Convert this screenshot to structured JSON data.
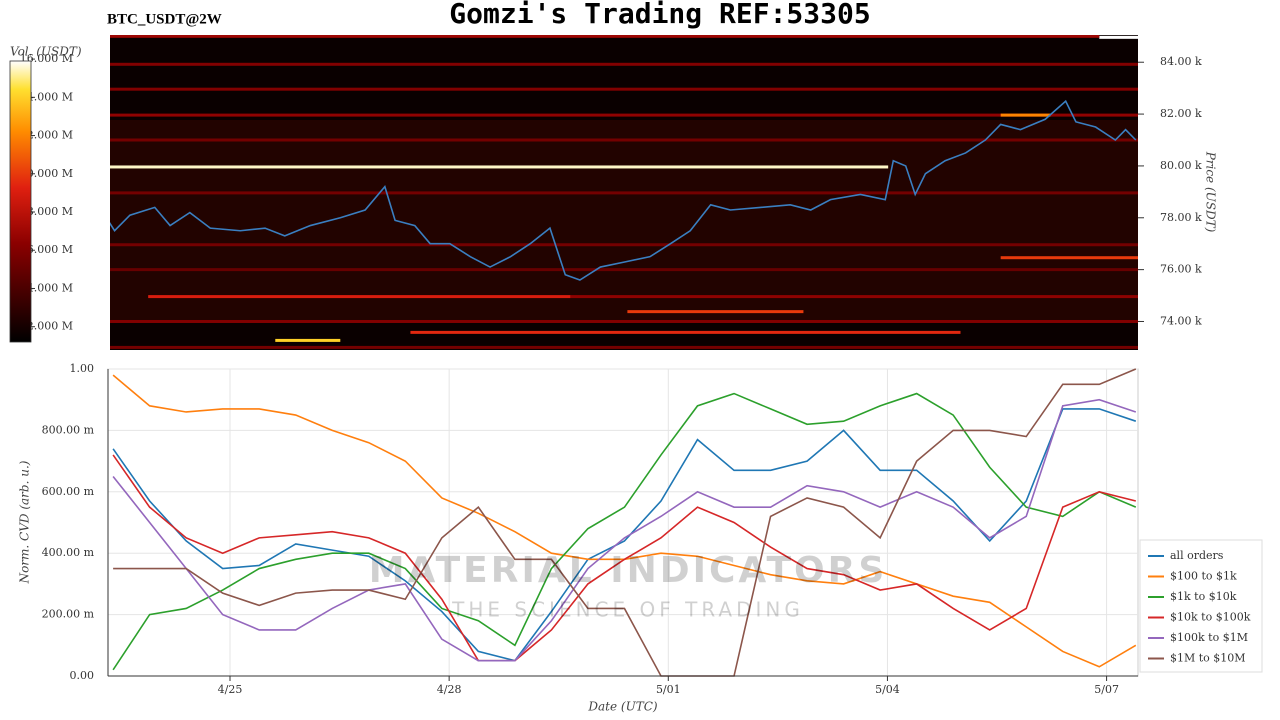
{
  "chart_data": [
    {
      "type": "heatmap",
      "title": "Gomzi's Trading REF:53305",
      "subtitle": "BTC_USDT@2W",
      "colorbar_label": "Vol. (USDT)",
      "y_label": "Price (USDT)",
      "xlim": [
        23.33,
        37.43
      ],
      "ylim": [
        72900,
        85050
      ],
      "yticks": [
        {
          "value": 74000,
          "label": "74.00 k"
        },
        {
          "value": 76000,
          "label": "76.00 k"
        },
        {
          "value": 78000,
          "label": "78.00 k"
        },
        {
          "value": 80000,
          "label": "80.00 k"
        },
        {
          "value": 82000,
          "label": "82.00 k"
        },
        {
          "value": 84000,
          "label": "84.00 k"
        }
      ],
      "clim": [
        1200000,
        15900000
      ],
      "cticks": [
        {
          "value": 2000000,
          "label": "2.000 M"
        },
        {
          "value": 4000000,
          "label": "4.000 M"
        },
        {
          "value": 6000000,
          "label": "6.000 M"
        },
        {
          "value": 8000000,
          "label": "8.000 M"
        },
        {
          "value": 10000000,
          "label": "10.000 M"
        },
        {
          "value": 12000000,
          "label": "12.000 M"
        },
        {
          "value": 14000000,
          "label": "14.000 M"
        },
        {
          "value": 16000000,
          "label": "16.000 M"
        }
      ],
      "bands": [
        {
          "price": 84960,
          "start": 36.9,
          "end": 37.43,
          "volume": 15900000
        },
        {
          "price": 85000,
          "start": 23.33,
          "end": 36.9,
          "volume": 7000000
        },
        {
          "price": 83920,
          "start": 23.33,
          "end": 37.43,
          "volume": 6000000
        },
        {
          "price": 82960,
          "start": 23.33,
          "end": 37.43,
          "volume": 6000000
        },
        {
          "price": 81960,
          "start": 23.33,
          "end": 37.43,
          "volume": 6500000
        },
        {
          "price": 81960,
          "start": 35.55,
          "end": 36.23,
          "volume": 12000000
        },
        {
          "price": 81000,
          "start": 23.33,
          "end": 37.43,
          "volume": 5500000
        },
        {
          "price": 79960,
          "start": 23.33,
          "end": 34.01,
          "volume": 15500000
        },
        {
          "price": 78960,
          "start": 23.33,
          "end": 37.43,
          "volume": 5500000
        },
        {
          "price": 76960,
          "start": 23.33,
          "end": 37.43,
          "volume": 5500000
        },
        {
          "price": 76460,
          "start": 35.55,
          "end": 37.43,
          "volume": 10000000
        },
        {
          "price": 76000,
          "start": 23.33,
          "end": 37.43,
          "volume": 5000000
        },
        {
          "price": 74960,
          "start": 23.88,
          "end": 29.66,
          "volume": 9000000
        },
        {
          "price": 74960,
          "start": 29.66,
          "end": 37.43,
          "volume": 6500000
        },
        {
          "price": 74380,
          "start": 30.44,
          "end": 32.85,
          "volume": 10000000
        },
        {
          "price": 74000,
          "start": 23.33,
          "end": 37.43,
          "volume": 6000000
        },
        {
          "price": 73580,
          "start": 27.47,
          "end": 35.0,
          "volume": 9500000
        },
        {
          "price": 73270,
          "start": 25.62,
          "end": 26.51,
          "volume": 14000000
        },
        {
          "price": 73000,
          "start": 23.33,
          "end": 37.43,
          "volume": 5500000
        }
      ],
      "price_line": {
        "color": "#3a7fc1",
        "x": [
          23.33,
          23.42,
          23.63,
          23.97,
          24.18,
          24.45,
          24.73,
          25.14,
          25.48,
          25.75,
          26.1,
          26.51,
          26.85,
          27.12,
          27.26,
          27.53,
          27.74,
          28.01,
          28.29,
          28.56,
          28.84,
          29.11,
          29.38,
          29.59,
          29.79,
          30.07,
          30.41,
          30.75,
          31.03,
          31.3,
          31.58,
          31.85,
          32.26,
          32.67,
          32.95,
          33.22,
          33.63,
          33.97,
          34.08,
          34.25,
          34.38,
          34.52,
          34.79,
          35.07,
          35.34,
          35.55,
          35.82,
          36.16,
          36.44,
          36.58,
          36.85,
          37.12,
          37.26,
          37.4
        ],
        "values": [
          77900,
          77500,
          78100,
          78400,
          77700,
          78200,
          77600,
          77500,
          77600,
          77300,
          77700,
          78000,
          78300,
          79200,
          77900,
          77700,
          77000,
          77000,
          76500,
          76100,
          76500,
          77000,
          77600,
          75800,
          75600,
          76100,
          76300,
          76500,
          77000,
          77500,
          78500,
          78300,
          78400,
          78500,
          78300,
          78700,
          78900,
          78700,
          80200,
          80000,
          78900,
          79700,
          80200,
          80500,
          81000,
          81600,
          81400,
          81800,
          82500,
          81700,
          81500,
          81000,
          81400,
          81000
        ]
      }
    },
    {
      "type": "line",
      "y_label": "Norm. CVD (arb. u.)",
      "x_label": "Date (UTC)",
      "watermark": [
        "MATERIAL INDICATORS",
        "THE SCIENCE OF TRADING"
      ],
      "grid": true,
      "legend": "right",
      "xlim": [
        23.33,
        37.43
      ],
      "xticks": [
        {
          "value": 25,
          "label": "4/25"
        },
        {
          "value": 28,
          "label": "4/28"
        },
        {
          "value": 31,
          "label": "5/01"
        },
        {
          "value": 34,
          "label": "5/04"
        },
        {
          "value": 37,
          "label": "5/07"
        }
      ],
      "ylim": [
        0,
        1
      ],
      "yticks": [
        {
          "value": 0,
          "label": "0.00"
        },
        {
          "value": 0.2,
          "label": "200.00 m"
        },
        {
          "value": 0.4,
          "label": "400.00 m"
        },
        {
          "value": 0.6,
          "label": "600.00 m"
        },
        {
          "value": 0.8,
          "label": "800.00 m"
        },
        {
          "value": 1,
          "label": "1.00"
        }
      ],
      "x": [
        23.4,
        23.9,
        24.4,
        24.9,
        25.4,
        25.9,
        26.4,
        26.9,
        27.4,
        27.9,
        28.4,
        28.9,
        29.4,
        29.9,
        30.4,
        30.9,
        31.4,
        31.9,
        32.4,
        32.9,
        33.4,
        33.9,
        34.4,
        34.9,
        35.4,
        35.9,
        36.4,
        36.9,
        37.4
      ],
      "series": [
        {
          "name": "all orders",
          "color": "#1f77b4",
          "values": [
            0.74,
            0.57,
            0.44,
            0.35,
            0.36,
            0.43,
            0.41,
            0.39,
            0.31,
            0.21,
            0.08,
            0.05,
            0.21,
            0.38,
            0.44,
            0.57,
            0.77,
            0.67,
            0.67,
            0.7,
            0.8,
            0.67,
            0.67,
            0.57,
            0.44,
            0.57,
            0.87,
            0.87,
            0.83
          ]
        },
        {
          "name": "$100 to $1k",
          "color": "#ff7f0e",
          "values": [
            0.98,
            0.88,
            0.86,
            0.87,
            0.87,
            0.85,
            0.8,
            0.76,
            0.7,
            0.58,
            0.53,
            0.47,
            0.4,
            0.38,
            0.38,
            0.4,
            0.39,
            0.36,
            0.33,
            0.31,
            0.3,
            0.34,
            0.3,
            0.26,
            0.24,
            0.16,
            0.08,
            0.03,
            0.1
          ]
        },
        {
          "name": "$1k to $10k",
          "color": "#2ca02c",
          "values": [
            0.02,
            0.2,
            0.22,
            0.28,
            0.35,
            0.38,
            0.4,
            0.4,
            0.35,
            0.22,
            0.18,
            0.1,
            0.35,
            0.48,
            0.55,
            0.72,
            0.88,
            0.92,
            0.87,
            0.82,
            0.83,
            0.88,
            0.92,
            0.85,
            0.68,
            0.55,
            0.52,
            0.6,
            0.55
          ]
        },
        {
          "name": "$10k to $100k",
          "color": "#d62728",
          "values": [
            0.72,
            0.55,
            0.45,
            0.4,
            0.45,
            0.46,
            0.47,
            0.45,
            0.4,
            0.25,
            0.05,
            0.05,
            0.15,
            0.3,
            0.38,
            0.45,
            0.55,
            0.5,
            0.42,
            0.35,
            0.33,
            0.28,
            0.3,
            0.22,
            0.15,
            0.22,
            0.55,
            0.6,
            0.57
          ]
        },
        {
          "name": "$100k to $1M",
          "color": "#9467bd",
          "values": [
            0.65,
            0.5,
            0.35,
            0.2,
            0.15,
            0.15,
            0.22,
            0.28,
            0.3,
            0.12,
            0.05,
            0.05,
            0.18,
            0.35,
            0.45,
            0.52,
            0.6,
            0.55,
            0.55,
            0.62,
            0.6,
            0.55,
            0.6,
            0.55,
            0.45,
            0.52,
            0.88,
            0.9,
            0.86
          ]
        },
        {
          "name": "$1M to $10M",
          "color": "#8c564b",
          "values": [
            0.35,
            0.35,
            0.35,
            0.27,
            0.23,
            0.27,
            0.28,
            0.28,
            0.25,
            0.45,
            0.55,
            0.38,
            0.38,
            0.22,
            0.22,
            0,
            0,
            0,
            0.52,
            0.58,
            0.55,
            0.45,
            0.7,
            0.8,
            0.8,
            0.78,
            0.95,
            0.95,
            1
          ]
        }
      ]
    }
  ]
}
